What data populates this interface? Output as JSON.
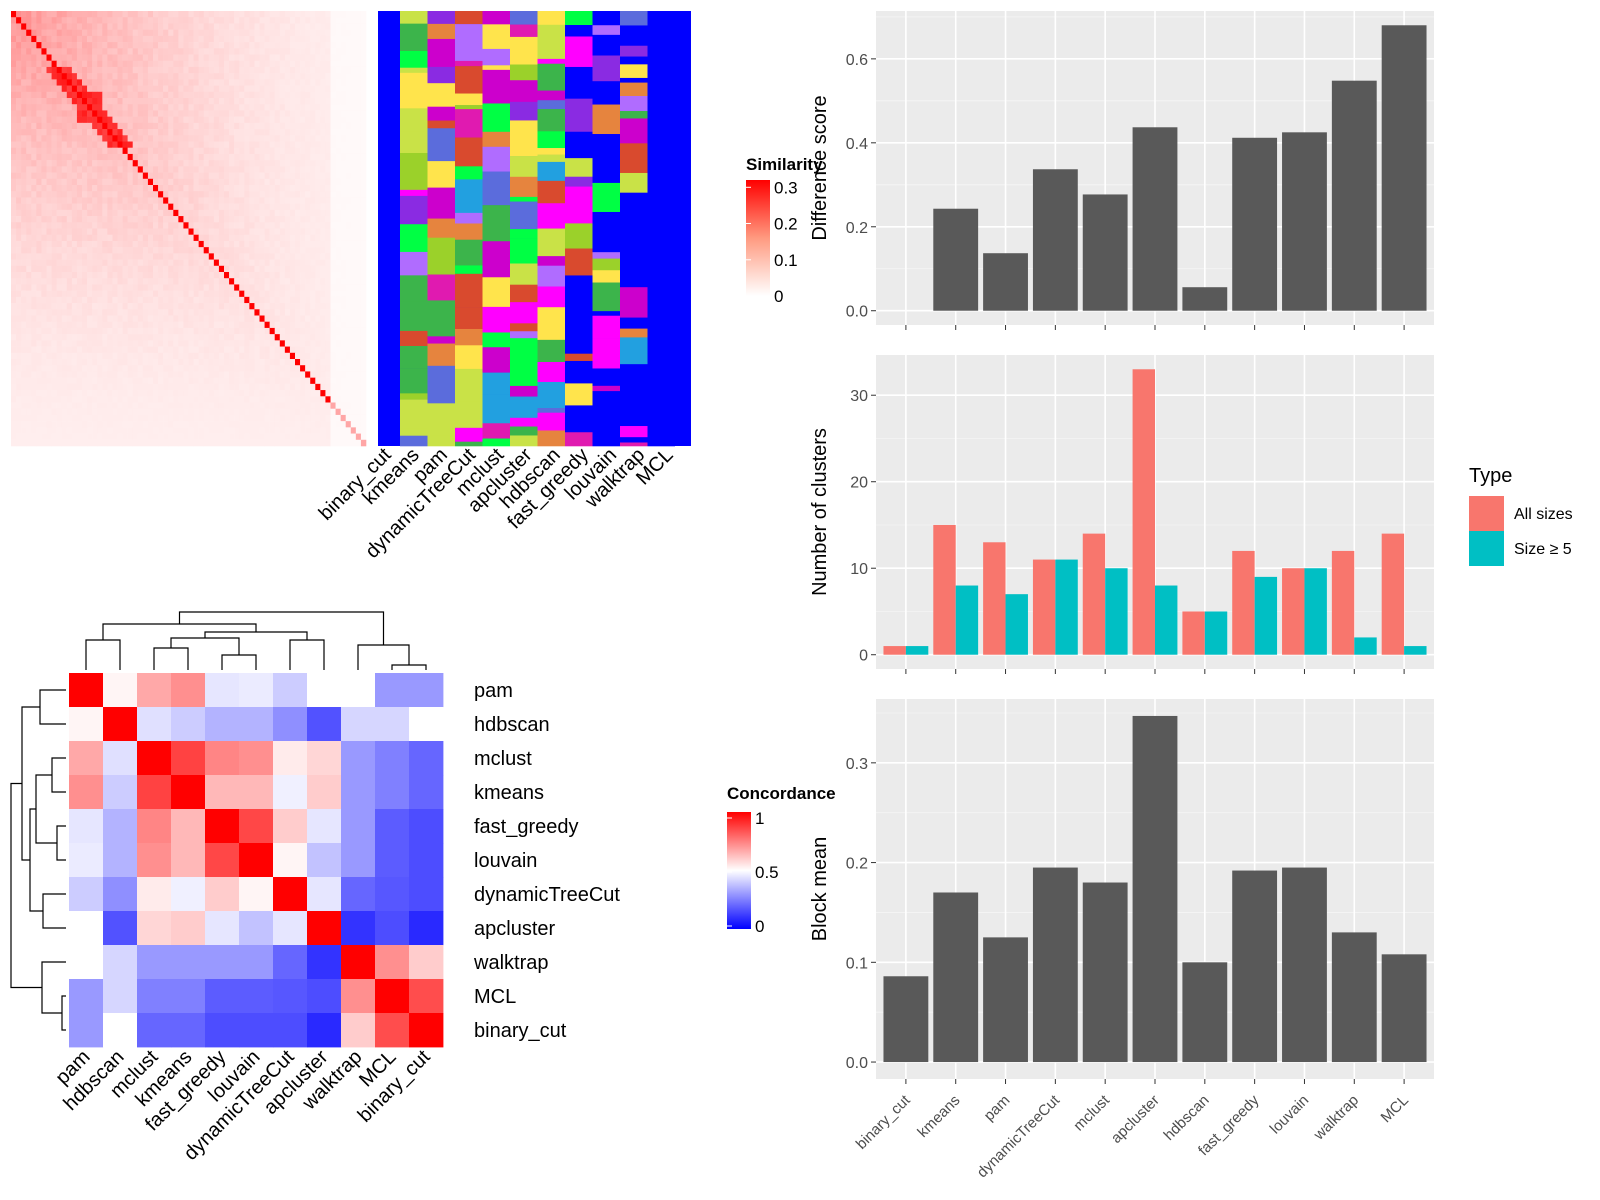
{
  "chart_data": [
    {
      "type": "heatmap",
      "panel": "similarity-matrix",
      "legend": {
        "title": "Similarity",
        "ticks": [
          "0",
          "0.1",
          "0.2",
          "0.3"
        ],
        "range": [
          0,
          0.3
        ],
        "colors": [
          "#ffffff",
          "#ff0000"
        ]
      }
    },
    {
      "type": "heatmap",
      "panel": "cluster-labels",
      "columns": [
        "binary_cut",
        "kmeans",
        "pam",
        "dynamicTreeCut",
        "mclust",
        "apcluster",
        "hdbscan",
        "fast_greedy",
        "louvain",
        "walktrap",
        "MCL"
      ],
      "palette": [
        "#0000ff",
        "#ff00ff",
        "#e6843e",
        "#8a2be2",
        "#cc00cc",
        "#ffe44c",
        "#22a0e0",
        "#3cb44b",
        "#00ff44",
        "#c9e247",
        "#b06cff",
        "#d94a2e",
        "#5b6cdc",
        "#9bd12a",
        "#e01ab0"
      ]
    },
    {
      "type": "heatmap",
      "panel": "concordance",
      "rows": [
        "pam",
        "hdbscan",
        "mclust",
        "kmeans",
        "fast_greedy",
        "louvain",
        "dynamicTreeCut",
        "apcluster",
        "walktrap",
        "MCL",
        "binary_cut"
      ],
      "columns": [
        "pam",
        "hdbscan",
        "mclust",
        "kmeans",
        "fast_greedy",
        "louvain",
        "dynamicTreeCut",
        "apcluster",
        "walktrap",
        "MCL",
        "binary_cut"
      ],
      "values": [
        [
          1.0,
          0.52,
          0.67,
          0.72,
          0.45,
          0.46,
          0.4,
          0.5,
          0.5,
          0.3,
          0.3
        ],
        [
          0.52,
          1.0,
          0.44,
          0.4,
          0.35,
          0.35,
          0.28,
          0.16,
          0.42,
          0.42,
          0.5
        ],
        [
          0.67,
          0.44,
          1.0,
          0.87,
          0.74,
          0.72,
          0.54,
          0.58,
          0.3,
          0.25,
          0.2
        ],
        [
          0.72,
          0.4,
          0.87,
          1.0,
          0.64,
          0.64,
          0.47,
          0.6,
          0.3,
          0.25,
          0.2
        ],
        [
          0.45,
          0.35,
          0.74,
          0.64,
          1.0,
          0.86,
          0.6,
          0.45,
          0.3,
          0.18,
          0.15
        ],
        [
          0.46,
          0.35,
          0.72,
          0.64,
          0.86,
          1.0,
          0.52,
          0.38,
          0.3,
          0.18,
          0.15
        ],
        [
          0.4,
          0.28,
          0.54,
          0.47,
          0.6,
          0.52,
          1.0,
          0.45,
          0.2,
          0.17,
          0.15
        ],
        [
          0.5,
          0.16,
          0.58,
          0.6,
          0.45,
          0.38,
          0.45,
          1.0,
          0.1,
          0.15,
          0.08
        ],
        [
          0.5,
          0.42,
          0.3,
          0.3,
          0.3,
          0.3,
          0.2,
          0.1,
          1.0,
          0.72,
          0.6
        ],
        [
          0.3,
          0.42,
          0.25,
          0.25,
          0.18,
          0.18,
          0.17,
          0.15,
          0.72,
          1.0,
          0.85
        ],
        [
          0.3,
          0.5,
          0.2,
          0.2,
          0.15,
          0.15,
          0.15,
          0.08,
          0.6,
          0.85,
          1.0
        ]
      ],
      "legend": {
        "title": "Concordance",
        "ticks": [
          "0",
          "0.5",
          "1"
        ],
        "range": [
          0,
          1
        ],
        "colors": [
          "#0000ff",
          "#ffffff",
          "#ff0000"
        ]
      }
    },
    {
      "type": "bar",
      "panel": "difference-score",
      "categories": [
        "binary_cut",
        "kmeans",
        "pam",
        "dynamicTreeCut",
        "mclust",
        "apcluster",
        "hdbscan",
        "fast_greedy",
        "louvain",
        "walktrap",
        "MCL"
      ],
      "values": [
        0.0,
        0.243,
        0.137,
        0.337,
        0.277,
        0.437,
        0.056,
        0.412,
        0.425,
        0.548,
        0.68
      ],
      "ylabel": "Difference score",
      "ylim": [
        -0.034,
        0.714
      ],
      "yticks": [
        0.0,
        0.2,
        0.4,
        0.6
      ],
      "yticklabels": [
        "0.0",
        "0.2",
        "0.4",
        "0.6"
      ],
      "bar_color": "#595959",
      "background": "#ebebeb"
    },
    {
      "type": "bar",
      "panel": "number-of-clusters",
      "categories": [
        "binary_cut",
        "kmeans",
        "pam",
        "dynamicTreeCut",
        "mclust",
        "apcluster",
        "hdbscan",
        "fast_greedy",
        "louvain",
        "walktrap",
        "MCL"
      ],
      "series": [
        {
          "name": "All sizes",
          "color": "#f8766d",
          "values": [
            1,
            15,
            13,
            11,
            14,
            33,
            5,
            12,
            10,
            12,
            14
          ]
        },
        {
          "name": "Size ≥ 5",
          "color": "#00bfc4",
          "values": [
            1,
            8,
            7,
            11,
            10,
            8,
            5,
            9,
            10,
            2,
            1
          ]
        }
      ],
      "ylabel": "Number of clusters",
      "ylim": [
        -1.65,
        34.65
      ],
      "yticks": [
        0,
        10,
        20,
        30
      ],
      "yticklabels": [
        "0",
        "10",
        "20",
        "30"
      ],
      "legend": {
        "title": "Type",
        "placement": "right"
      },
      "background": "#ebebeb"
    },
    {
      "type": "bar",
      "panel": "block-mean",
      "categories": [
        "binary_cut",
        "kmeans",
        "pam",
        "dynamicTreeCut",
        "mclust",
        "apcluster",
        "hdbscan",
        "fast_greedy",
        "louvain",
        "walktrap",
        "MCL"
      ],
      "values": [
        0.086,
        0.17,
        0.125,
        0.195,
        0.18,
        0.347,
        0.1,
        0.192,
        0.195,
        0.13,
        0.108
      ],
      "ylabel": "Block mean",
      "ylim": [
        -0.017,
        0.364
      ],
      "yticks": [
        0.0,
        0.1,
        0.2,
        0.3
      ],
      "yticklabels": [
        "0.0",
        "0.1",
        "0.2",
        "0.3"
      ],
      "bar_color": "#595959",
      "background": "#ebebeb"
    }
  ]
}
